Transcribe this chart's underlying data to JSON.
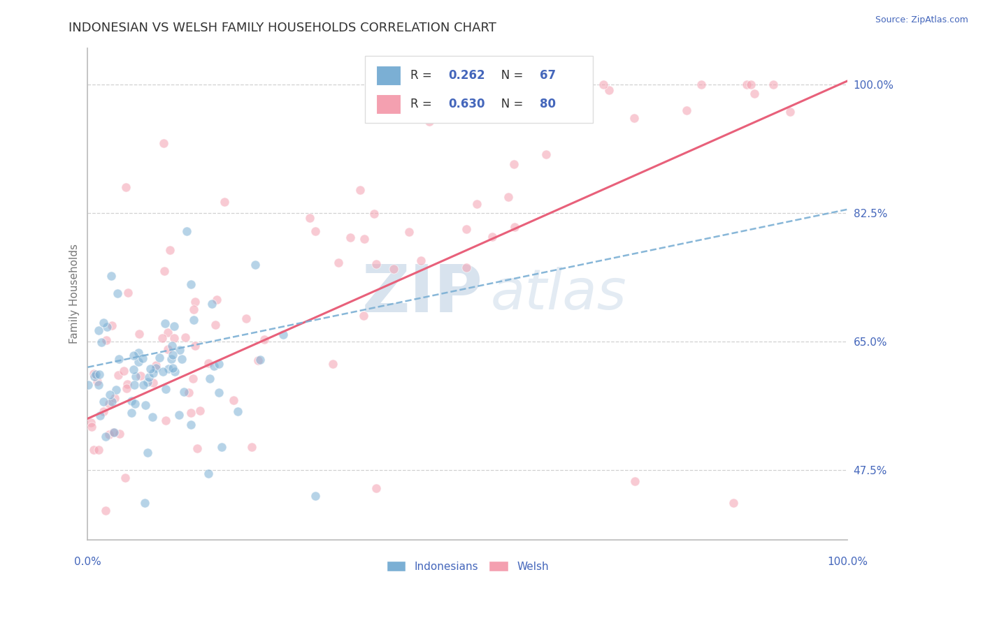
{
  "title": "INDONESIAN VS WELSH FAMILY HOUSEHOLDS CORRELATION CHART",
  "source": "Source: ZipAtlas.com",
  "ylabel": "Family Households",
  "ytick_labels": [
    "47.5%",
    "65.0%",
    "82.5%",
    "100.0%"
  ],
  "ytick_values": [
    0.475,
    0.65,
    0.825,
    1.0
  ],
  "xtick_labels": [
    "0.0%",
    "100.0%"
  ],
  "xmin": 0.0,
  "xmax": 1.0,
  "ymin": 0.38,
  "ymax": 1.05,
  "indonesian_color": "#7BAFD4",
  "welsh_color": "#F4A0B0",
  "reg_welsh_color": "#E8607A",
  "reg_ind_color": "#7BAFD4",
  "indonesian_R": 0.262,
  "indonesian_N": 67,
  "welsh_R": 0.63,
  "welsh_N": 80,
  "watermark_zip_color": "#C8D8E8",
  "watermark_atlas_color": "#C8D8E8",
  "background_color": "#FFFFFF",
  "grid_color": "#CCCCCC",
  "axis_label_color": "#4466BB",
  "legend_text_color": "#333333",
  "title_color": "#333333",
  "title_fontsize": 13,
  "axis_fontsize": 11,
  "legend_fontsize": 12,
  "scatter_size": 90,
  "scatter_alpha": 0.55,
  "scatter_edge_color": "white",
  "scatter_edge_width": 0.8
}
